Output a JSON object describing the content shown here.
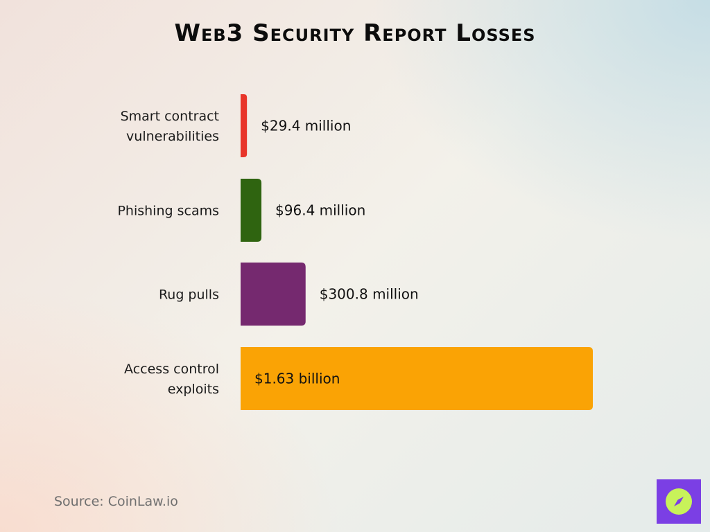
{
  "chart_data": {
    "type": "bar",
    "orientation": "horizontal",
    "title": "Web3 Security Report Losses",
    "categories": [
      [
        "Smart contract",
        "vulnerabilities"
      ],
      [
        "Phishing scams"
      ],
      [
        "Rug pulls"
      ],
      [
        "Access control",
        "exploits"
      ]
    ],
    "values": [
      29.4,
      96.4,
      300.8,
      1630
    ],
    "value_unit": "million USD",
    "data_labels": [
      "$29.4 million",
      "$96.4 million",
      "$300.8 million",
      "$1.63 billion"
    ],
    "colors": [
      "#e8352a",
      "#2f6410",
      "#75296f",
      "#faa305"
    ],
    "xlim": [
      0,
      1630
    ],
    "grid": false,
    "legend": "none"
  },
  "source": "Source: CoinLaw.io",
  "logo": {
    "icon": "compass-icon",
    "colors": [
      "#7b3fe4",
      "#c8f25a"
    ]
  }
}
